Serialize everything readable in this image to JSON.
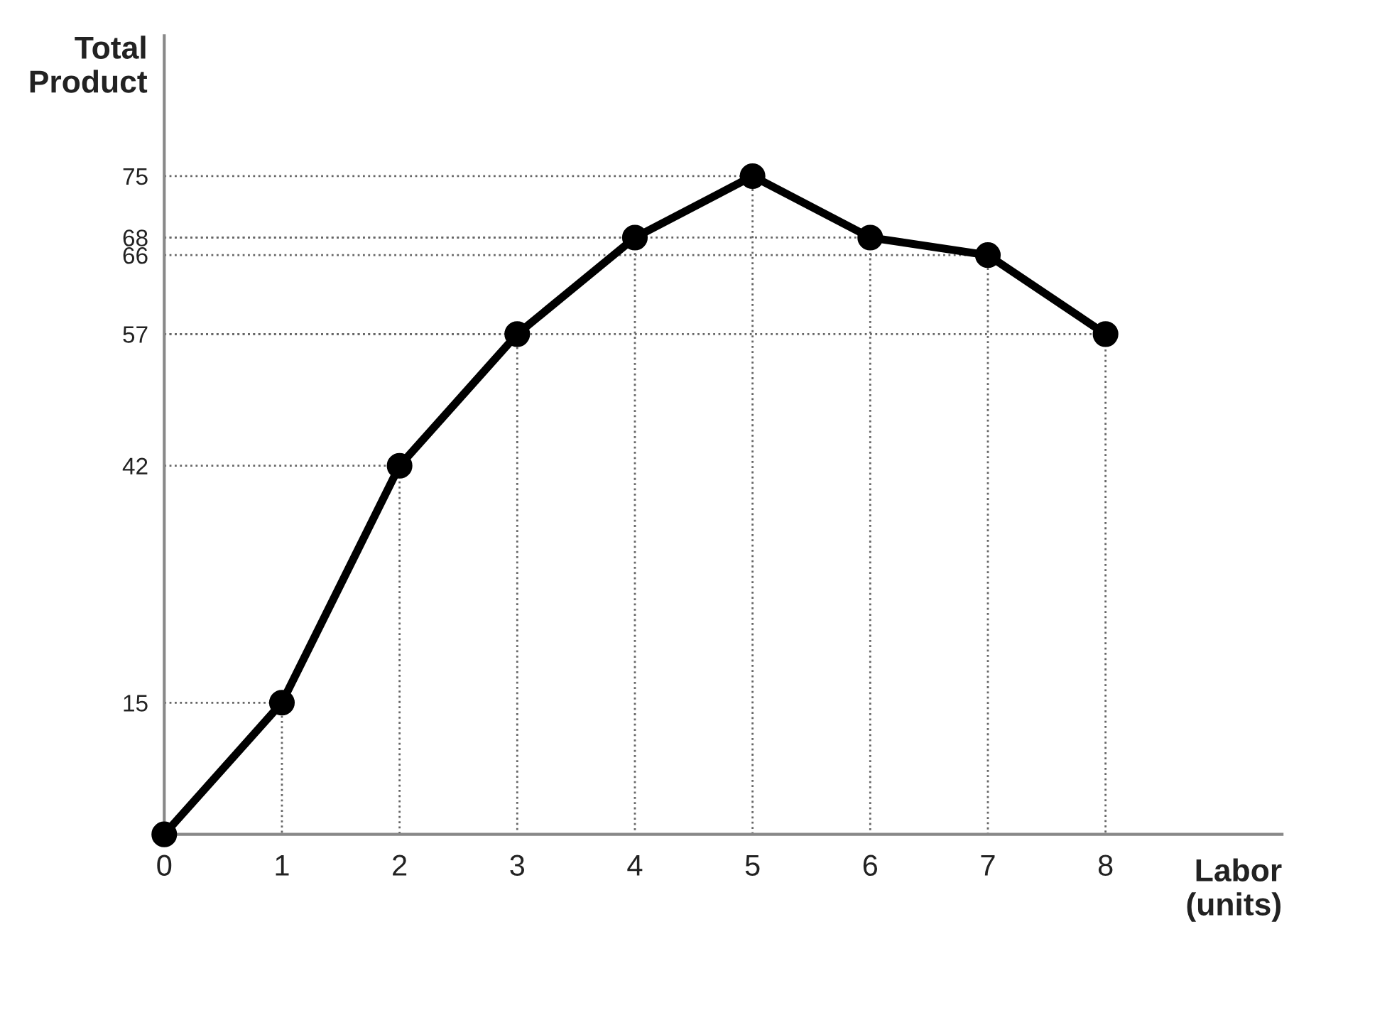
{
  "chart_data": {
    "type": "line",
    "xlabel": "Labor\n(units)",
    "ylabel": "Total\nProduct",
    "x": [
      0,
      1,
      2,
      3,
      4,
      5,
      6,
      7,
      8
    ],
    "series": [
      {
        "color": "#000000",
        "values": [
          0,
          15,
          42,
          57,
          68,
          75,
          68,
          66,
          57
        ]
      },
      {
        "color": "#666666",
        "line_style": "dotted",
        "marker": "none",
        "x": [
          0,
          1,
          1
        ],
        "values": [
          15,
          15,
          0
        ]
      },
      {
        "color": "#666666",
        "line_style": "dotted",
        "marker": "none",
        "x": [
          0,
          2,
          2
        ],
        "values": [
          42,
          42,
          0
        ]
      },
      {
        "color": "#666666",
        "line_style": "dotted",
        "marker": "none",
        "x": [
          0,
          3,
          3
        ],
        "values": [
          57,
          57,
          0
        ]
      },
      {
        "color": "#666666",
        "line_style": "dotted",
        "marker": "none",
        "x": [
          0,
          4,
          4
        ],
        "values": [
          68,
          68,
          0
        ]
      },
      {
        "color": "#666666",
        "line_style": "dotted",
        "marker": "none",
        "x": [
          0,
          5,
          5
        ],
        "values": [
          75,
          75,
          0
        ]
      },
      {
        "color": "#666666",
        "line_style": "dotted",
        "marker": "none",
        "x": [
          0,
          6,
          6
        ],
        "values": [
          68,
          68,
          0
        ]
      },
      {
        "color": "#666666",
        "line_style": "dotted",
        "marker": "none",
        "x": [
          0,
          7,
          7
        ],
        "values": [
          66,
          66,
          0
        ]
      },
      {
        "color": "#666666",
        "line_style": "dotted",
        "marker": "none",
        "x": [
          0,
          8,
          8
        ],
        "values": [
          57,
          57,
          0
        ]
      }
    ],
    "xlim": [
      0,
      9.5
    ],
    "xticks": [
      0,
      1,
      2,
      3,
      4,
      5,
      6,
      7,
      8
    ],
    "ylim": [
      0,
      91
    ],
    "yticks": [
      15,
      42,
      57,
      66,
      68,
      75
    ],
    "marker": "circle",
    "line_style": "solid"
  }
}
